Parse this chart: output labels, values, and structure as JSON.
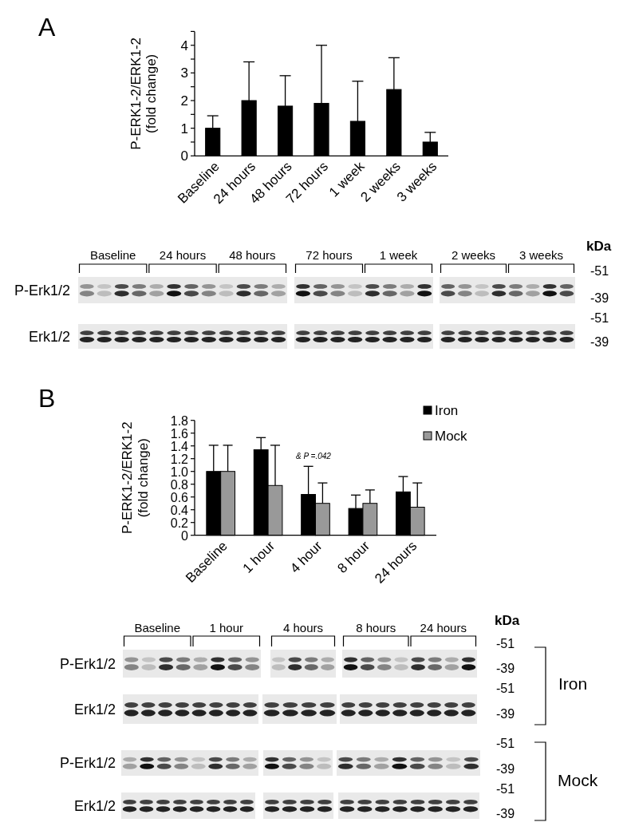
{
  "chart_data": [
    {
      "type": "bar",
      "title": "A",
      "ylabel": "P-ERK1-2/ERK1-2\n(fold change)",
      "categories": [
        "Baseline",
        "24 hours",
        "48 hours",
        "72 hours",
        "1 week",
        "2 weeks",
        "3 weeks"
      ],
      "values": [
        1.0,
        2.0,
        1.8,
        1.9,
        1.25,
        2.4,
        0.5
      ],
      "color": "#000000",
      "errors": [
        [
          1.0,
          1.45
        ],
        [
          2.0,
          3.4
        ],
        [
          1.8,
          2.9
        ],
        [
          1.9,
          4.0
        ],
        [
          1.25,
          2.7
        ],
        [
          2.4,
          3.55
        ],
        [
          0.5,
          0.85
        ]
      ],
      "ylim": [
        0,
        4.5
      ],
      "yticks": [
        0,
        {
          "value": 0.5,
          "label": null
        },
        1,
        {
          "value": 1.5,
          "label": null
        },
        2,
        {
          "value": 2.5,
          "label": null
        },
        3,
        {
          "value": 3.5,
          "label": null
        },
        4,
        {
          "value": 4.5,
          "label": null
        }
      ]
    },
    {
      "type": "other",
      "categories": [
        "Baseline",
        "24 hours",
        "48 hours",
        "72 hours",
        "1 week",
        "2 weeks",
        "3 weeks"
      ],
      "y_categories": [
        "P-Erk1/2",
        "Erk1/2"
      ],
      "y2_categories": [
        "-51",
        "-39",
        "-51",
        "-39"
      ],
      "annotations": [
        "kDa"
      ]
    },
    {
      "type": "bar",
      "title": "B",
      "ylabel": "P-ERK1-2/ERK1-2\n(fold change)",
      "categories": [
        "Baseline",
        "1 hour",
        "4 hour",
        "8 hour",
        "24 hours"
      ],
      "series": [
        {
          "name": "Iron",
          "color": "#000000",
          "values": [
            1.0,
            1.34,
            0.64,
            0.42,
            0.68
          ],
          "errors": [
            [
              1.0,
              1.41
            ],
            [
              1.34,
              1.53
            ],
            [
              0.64,
              1.08
            ],
            [
              0.42,
              0.63
            ],
            [
              0.68,
              0.92
            ]
          ]
        },
        {
          "name": "Mock",
          "color": "#999999",
          "values": [
            1.0,
            0.78,
            0.5,
            0.5,
            0.44
          ],
          "errors": [
            [
              1.0,
              1.41
            ],
            [
              0.78,
              1.41
            ],
            [
              0.5,
              0.82
            ],
            [
              0.5,
              0.71
            ],
            [
              0.44,
              0.82
            ]
          ]
        }
      ],
      "ylim": [
        0,
        1.8
      ],
      "yticks": [
        0,
        0.2,
        0.4,
        0.6,
        0.8,
        {
          "value": 1,
          "label": "1.0"
        },
        1.2,
        1.4,
        1.6,
        1.8
      ],
      "legend": "top right",
      "annotations": [
        "& P =.042"
      ]
    },
    {
      "type": "other",
      "categories": [
        "Baseline",
        "1 hour",
        "4 hours",
        "8 hours",
        "24 hours"
      ],
      "y_categories": [
        "P-Erk1/2",
        "Erk1/2",
        "P-Erk1/2",
        "Erk1/2"
      ],
      "y2_categories": [
        "-51",
        "-39",
        "-51",
        "-39",
        "-51",
        "-39",
        "-51",
        "-39"
      ],
      "annotations": [
        "kDa",
        "Iron",
        "Mock"
      ]
    }
  ]
}
